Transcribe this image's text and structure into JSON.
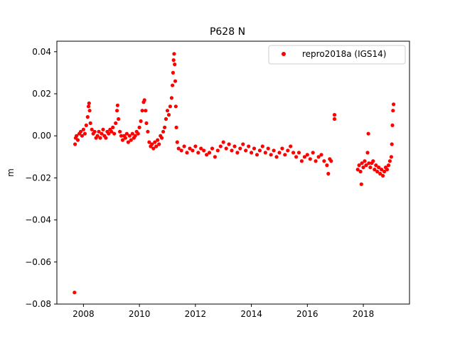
{
  "chart_data": {
    "type": "scatter",
    "title": "P628 N",
    "xlabel": "",
    "ylabel": "m",
    "xlim": [
      2007.05,
      2019.65
    ],
    "ylim": [
      -0.08,
      0.045
    ],
    "xticks": [
      2008,
      2010,
      2012,
      2014,
      2016,
      2018
    ],
    "yticks": [
      0.04,
      0.02,
      0.0,
      -0.02,
      -0.04,
      -0.06,
      -0.08
    ],
    "ytick_labels": [
      "0.04",
      "0.02",
      "0.00",
      "−0.02",
      "−0.04",
      "−0.06",
      "−0.08"
    ],
    "grid": false,
    "legend_position": "top-right",
    "series": [
      {
        "name": "repro2018a (IGS14)",
        "color": "#ff0000",
        "marker": "circle",
        "points": [
          [
            2007.68,
            -0.0745
          ],
          [
            2007.7,
            -0.004
          ],
          [
            2007.72,
            -0.001
          ],
          [
            2007.75,
            0.0
          ],
          [
            2007.8,
            -0.002
          ],
          [
            2007.85,
            0.001
          ],
          [
            2007.9,
            0.002
          ],
          [
            2007.95,
            0.0
          ],
          [
            2008.0,
            0.003
          ],
          [
            2008.05,
            0.001
          ],
          [
            2008.1,
            0.005
          ],
          [
            2008.15,
            0.009
          ],
          [
            2008.18,
            0.014
          ],
          [
            2008.2,
            0.0155
          ],
          [
            2008.22,
            0.012
          ],
          [
            2008.25,
            0.006
          ],
          [
            2008.3,
            0.003
          ],
          [
            2008.35,
            0.001
          ],
          [
            2008.4,
            0.002
          ],
          [
            2008.45,
            -0.001
          ],
          [
            2008.5,
            0.0
          ],
          [
            2008.55,
            0.002
          ],
          [
            2008.6,
            -0.001
          ],
          [
            2008.65,
            0.001
          ],
          [
            2008.7,
            0.003
          ],
          [
            2008.75,
            0.0
          ],
          [
            2008.8,
            -0.001
          ],
          [
            2008.85,
            0.002
          ],
          [
            2008.9,
            0.001
          ],
          [
            2008.95,
            0.003
          ],
          [
            2009.0,
            0.002
          ],
          [
            2009.05,
            0.004
          ],
          [
            2009.1,
            0.001
          ],
          [
            2009.15,
            0.006
          ],
          [
            2009.2,
            0.012
          ],
          [
            2009.22,
            0.0145
          ],
          [
            2009.25,
            0.008
          ],
          [
            2009.3,
            0.002
          ],
          [
            2009.35,
            0.0
          ],
          [
            2009.4,
            -0.002
          ],
          [
            2009.45,
            0.0
          ],
          [
            2009.5,
            -0.001
          ],
          [
            2009.55,
            0.001
          ],
          [
            2009.6,
            -0.003
          ],
          [
            2009.65,
            0.0
          ],
          [
            2009.7,
            -0.002
          ],
          [
            2009.75,
            0.001
          ],
          [
            2009.8,
            -0.001
          ],
          [
            2009.85,
            0.0
          ],
          [
            2009.9,
            0.002
          ],
          [
            2009.95,
            0.001
          ],
          [
            2010.0,
            0.004
          ],
          [
            2010.05,
            0.007
          ],
          [
            2010.1,
            0.012
          ],
          [
            2010.15,
            0.016
          ],
          [
            2010.18,
            0.017
          ],
          [
            2010.22,
            0.012
          ],
          [
            2010.25,
            0.006
          ],
          [
            2010.3,
            0.002
          ],
          [
            2010.35,
            -0.003
          ],
          [
            2010.4,
            -0.005
          ],
          [
            2010.45,
            -0.004
          ],
          [
            2010.5,
            -0.006
          ],
          [
            2010.55,
            -0.003
          ],
          [
            2010.6,
            -0.005
          ],
          [
            2010.65,
            -0.002
          ],
          [
            2010.7,
            -0.004
          ],
          [
            2010.75,
            0.0
          ],
          [
            2010.8,
            -0.001
          ],
          [
            2010.85,
            0.002
          ],
          [
            2010.9,
            0.004
          ],
          [
            2010.95,
            0.008
          ],
          [
            2011.0,
            0.012
          ],
          [
            2011.05,
            0.01
          ],
          [
            2011.1,
            0.014
          ],
          [
            2011.15,
            0.018
          ],
          [
            2011.18,
            0.024
          ],
          [
            2011.2,
            0.03
          ],
          [
            2011.22,
            0.036
          ],
          [
            2011.24,
            0.039
          ],
          [
            2011.26,
            0.034
          ],
          [
            2011.28,
            0.026
          ],
          [
            2011.3,
            0.014
          ],
          [
            2011.32,
            0.004
          ],
          [
            2011.35,
            -0.003
          ],
          [
            2011.4,
            -0.006
          ],
          [
            2011.5,
            -0.007
          ],
          [
            2011.6,
            -0.005
          ],
          [
            2011.7,
            -0.008
          ],
          [
            2011.8,
            -0.006
          ],
          [
            2011.9,
            -0.007
          ],
          [
            2012.0,
            -0.005
          ],
          [
            2012.1,
            -0.008
          ],
          [
            2012.2,
            -0.006
          ],
          [
            2012.3,
            -0.007
          ],
          [
            2012.4,
            -0.009
          ],
          [
            2012.5,
            -0.008
          ],
          [
            2012.6,
            -0.006
          ],
          [
            2012.7,
            -0.01
          ],
          [
            2012.8,
            -0.007
          ],
          [
            2012.9,
            -0.005
          ],
          [
            2013.0,
            -0.003
          ],
          [
            2013.1,
            -0.006
          ],
          [
            2013.2,
            -0.004
          ],
          [
            2013.3,
            -0.007
          ],
          [
            2013.4,
            -0.005
          ],
          [
            2013.5,
            -0.008
          ],
          [
            2013.6,
            -0.006
          ],
          [
            2013.7,
            -0.004
          ],
          [
            2013.8,
            -0.007
          ],
          [
            2013.9,
            -0.005
          ],
          [
            2014.0,
            -0.008
          ],
          [
            2014.1,
            -0.006
          ],
          [
            2014.2,
            -0.009
          ],
          [
            2014.3,
            -0.007
          ],
          [
            2014.4,
            -0.005
          ],
          [
            2014.5,
            -0.008
          ],
          [
            2014.6,
            -0.006
          ],
          [
            2014.7,
            -0.009
          ],
          [
            2014.8,
            -0.007
          ],
          [
            2014.9,
            -0.01
          ],
          [
            2015.0,
            -0.008
          ],
          [
            2015.1,
            -0.006
          ],
          [
            2015.2,
            -0.009
          ],
          [
            2015.3,
            -0.007
          ],
          [
            2015.4,
            -0.005
          ],
          [
            2015.5,
            -0.008
          ],
          [
            2015.6,
            -0.01
          ],
          [
            2015.7,
            -0.008
          ],
          [
            2015.8,
            -0.012
          ],
          [
            2015.9,
            -0.01
          ],
          [
            2016.0,
            -0.009
          ],
          [
            2016.1,
            -0.011
          ],
          [
            2016.2,
            -0.008
          ],
          [
            2016.3,
            -0.012
          ],
          [
            2016.4,
            -0.01
          ],
          [
            2016.5,
            -0.009
          ],
          [
            2016.6,
            -0.012
          ],
          [
            2016.7,
            -0.014
          ],
          [
            2016.75,
            -0.018
          ],
          [
            2016.8,
            -0.011
          ],
          [
            2016.85,
            -0.012
          ],
          [
            2016.97,
            0.01
          ],
          [
            2016.97,
            0.008
          ],
          [
            2017.8,
            -0.016
          ],
          [
            2017.85,
            -0.014
          ],
          [
            2017.9,
            -0.017
          ],
          [
            2017.93,
            -0.023
          ],
          [
            2017.95,
            -0.013
          ],
          [
            2018.0,
            -0.015
          ],
          [
            2018.05,
            -0.012
          ],
          [
            2018.1,
            -0.014
          ],
          [
            2018.15,
            -0.008
          ],
          [
            2018.18,
            0.001
          ],
          [
            2018.2,
            -0.013
          ],
          [
            2018.25,
            -0.015
          ],
          [
            2018.3,
            -0.013
          ],
          [
            2018.35,
            -0.012
          ],
          [
            2018.4,
            -0.016
          ],
          [
            2018.45,
            -0.014
          ],
          [
            2018.5,
            -0.017
          ],
          [
            2018.55,
            -0.015
          ],
          [
            2018.6,
            -0.018
          ],
          [
            2018.65,
            -0.016
          ],
          [
            2018.7,
            -0.019
          ],
          [
            2018.75,
            -0.017
          ],
          [
            2018.8,
            -0.015
          ],
          [
            2018.85,
            -0.016
          ],
          [
            2018.9,
            -0.014
          ],
          [
            2018.95,
            -0.012
          ],
          [
            2019.0,
            -0.01
          ],
          [
            2019.02,
            -0.004
          ],
          [
            2019.04,
            0.005
          ],
          [
            2019.06,
            0.012
          ],
          [
            2019.08,
            0.015
          ]
        ]
      }
    ]
  }
}
